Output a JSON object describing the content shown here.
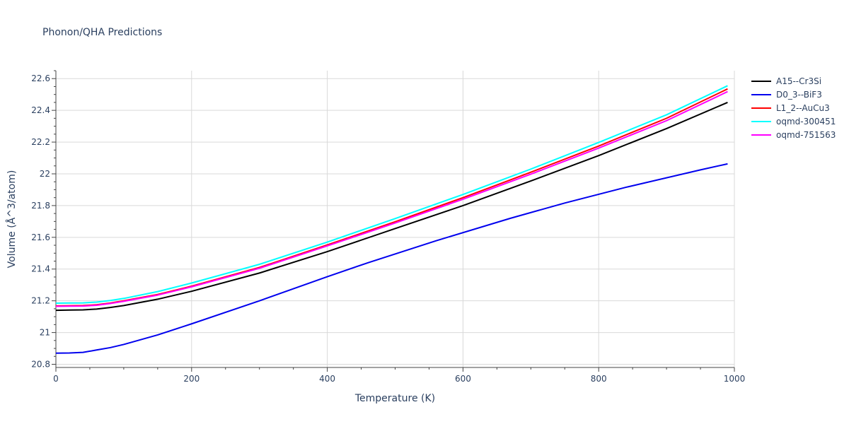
{
  "chart_data": {
    "type": "line",
    "title": "Phonon/QHA Predictions",
    "xlabel": "Temperature (K)",
    "ylabel": "Volume (Å^3/atom)",
    "xlim": [
      0,
      1000
    ],
    "ylim": [
      20.78,
      22.65
    ],
    "x_ticks": [
      0,
      200,
      400,
      600,
      800,
      1000
    ],
    "x_tick_labels": [
      "0",
      "200",
      "400",
      "600",
      "800",
      "1000"
    ],
    "y_ticks": [
      20.8,
      21.0,
      21.2,
      21.4,
      21.6,
      21.8,
      22.0,
      22.2,
      22.4,
      22.6
    ],
    "y_tick_labels": [
      "20.8",
      "21",
      "21.2",
      "21.4",
      "21.6",
      "21.8",
      "22",
      "22.2",
      "22.4",
      "22.6"
    ],
    "grid": true,
    "legend_position": "top-right",
    "series": [
      {
        "name": "A15--Cr3Si",
        "color": "#000000",
        "x": [
          0,
          20,
          40,
          60,
          80,
          100,
          150,
          200,
          300,
          400,
          500,
          600,
          700,
          800,
          900,
          990
        ],
        "y": [
          21.14,
          21.142,
          21.143,
          21.148,
          21.158,
          21.17,
          21.21,
          21.26,
          21.375,
          21.51,
          21.655,
          21.8,
          21.955,
          22.115,
          22.285,
          22.45
        ]
      },
      {
        "name": "D0_3--BiF3",
        "color": "#0000ee",
        "x": [
          0,
          20,
          40,
          60,
          80,
          100,
          150,
          200,
          300,
          400,
          460,
          560,
          670,
          750,
          840,
          950,
          990
        ],
        "y": [
          20.87,
          20.871,
          20.875,
          20.89,
          20.905,
          20.925,
          20.985,
          21.055,
          21.2,
          21.352,
          21.44,
          21.578,
          21.72,
          21.816,
          21.915,
          22.025,
          22.063
        ]
      },
      {
        "name": "L1_2--AuCu3",
        "color": "#ff0000",
        "x": [
          0,
          20,
          40,
          60,
          80,
          100,
          150,
          200,
          300,
          400,
          500,
          600,
          700,
          800,
          900,
          990
        ],
        "y": [
          21.168,
          21.169,
          21.17,
          21.175,
          21.186,
          21.2,
          21.24,
          21.292,
          21.41,
          21.552,
          21.698,
          21.85,
          22.01,
          22.175,
          22.35,
          22.535
        ]
      },
      {
        "name": "oqmd-300451",
        "color": "#00ffff",
        "x": [
          0,
          20,
          40,
          60,
          80,
          100,
          150,
          200,
          300,
          400,
          500,
          600,
          700,
          800,
          900,
          990
        ],
        "y": [
          21.185,
          21.186,
          21.187,
          21.192,
          21.202,
          21.215,
          21.258,
          21.312,
          21.43,
          21.57,
          21.718,
          21.87,
          22.03,
          22.198,
          22.372,
          22.555
        ]
      },
      {
        "name": "oqmd-751563",
        "color": "#ff00ff",
        "x": [
          0,
          20,
          40,
          60,
          80,
          100,
          150,
          200,
          300,
          400,
          500,
          600,
          700,
          800,
          900,
          990
        ],
        "y": [
          21.165,
          21.166,
          21.167,
          21.172,
          21.183,
          21.197,
          21.236,
          21.288,
          21.405,
          21.546,
          21.69,
          21.84,
          21.998,
          22.162,
          22.335,
          22.518
        ]
      }
    ]
  }
}
